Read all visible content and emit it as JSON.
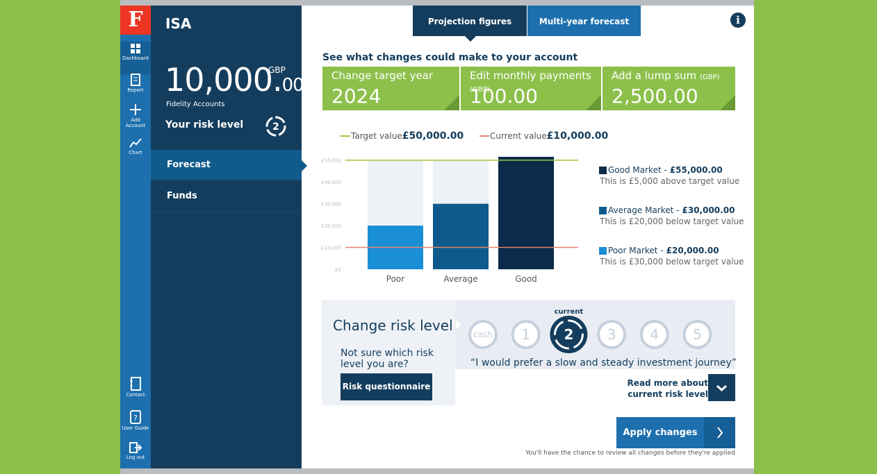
{
  "sidebar": {
    "logo": "F",
    "top": [
      "Dashboard",
      "Report",
      "Add Account",
      "Chart"
    ],
    "bottom": [
      "Contact",
      "User Guide",
      "Log out"
    ]
  },
  "account": {
    "title": "ISA",
    "balance": "10,000",
    "decimals": "00",
    "currency": "GBP",
    "subtitle": "Fidelity Accounts",
    "risk_label": "Your risk level",
    "risk_value": "2"
  },
  "menu": [
    "Forecast",
    "Funds"
  ],
  "tabs": [
    "Projection figures",
    "Multi-year forecast"
  ],
  "info": "i",
  "changes": {
    "heading": "See what changes could make to your account",
    "cards": [
      {
        "label": "Change target year",
        "value": "2024"
      },
      {
        "label": "Edit monthly payments",
        "unit": "(GBP)",
        "value": "100.00"
      },
      {
        "label": "Add a lump sum",
        "unit": "(GBP)",
        "value": "2,500.00"
      }
    ]
  },
  "chart_data": {
    "type": "bar",
    "categories": [
      "Poor",
      "Average",
      "Good"
    ],
    "values": [
      20000,
      30000,
      55000
    ],
    "value_labels": [
      "£20,000.00",
      "£30,000.00",
      "£55,000.00"
    ],
    "colors": [
      "#1a8fd6",
      "#0f5a8c",
      "#0c2a4a"
    ],
    "ylim": [
      0,
      51500
    ],
    "yticks": [
      {
        "value": 0,
        "label": "£0"
      },
      {
        "value": 10000,
        "label": "£10,000"
      },
      {
        "value": 20000,
        "label": "£20,000"
      },
      {
        "value": 30000,
        "label": "£30,000"
      },
      {
        "value": 40000,
        "label": "£40,000"
      },
      {
        "value": 50000,
        "label": "£50,000"
      }
    ],
    "target": {
      "label": "Target value",
      "value": 50000,
      "value_label": "£50,000.00",
      "color": "#9bc53d"
    },
    "current": {
      "label": "Current value",
      "value": 10000,
      "value_label": "£10,000.00",
      "color": "#e8836b"
    },
    "legend": [
      {
        "name": "Poor Market -",
        "note": "This is £30,000 below target value"
      },
      {
        "name": "Average Market -",
        "note": "This is £20,000 below target value"
      },
      {
        "name": "Good Market -",
        "note": "This is £5,000 above target value"
      }
    ]
  },
  "risk": {
    "title": "Change risk level",
    "options": [
      "cash",
      "1",
      "2",
      "3",
      "4",
      "5"
    ],
    "selected": 2,
    "current_label": "current",
    "quote": "“I would prefer a slow and steady investment journey”",
    "prompt": "Not sure which risk level you are?",
    "button": "Risk questionnaire",
    "read_more": "Read more about current risk level"
  },
  "apply": {
    "button": "Apply changes",
    "note": "You'll have the chance to review all changes before they're applied"
  }
}
